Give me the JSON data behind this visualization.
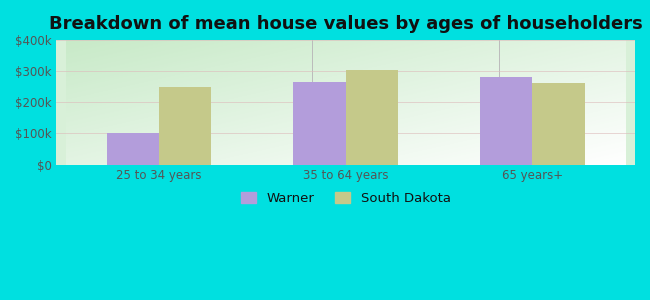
{
  "title": "Breakdown of mean house values by ages of householders",
  "categories": [
    "25 to 34 years",
    "35 to 64 years",
    "65 years+"
  ],
  "warner_values": [
    103000,
    265000,
    280000
  ],
  "sd_values": [
    250000,
    305000,
    262000
  ],
  "warner_color": "#b39ddb",
  "sd_color": "#c5c98a",
  "ylim": [
    0,
    400000
  ],
  "yticks": [
    0,
    100000,
    200000,
    300000,
    400000
  ],
  "ytick_labels": [
    "$0",
    "$100k",
    "$200k",
    "$300k",
    "$400k"
  ],
  "legend_warner": "Warner",
  "legend_sd": "South Dakota",
  "bar_width": 0.28,
  "outer_bg": "#00e0e0",
  "title_fontsize": 13,
  "tick_fontsize": 8.5,
  "legend_fontsize": 9.5
}
